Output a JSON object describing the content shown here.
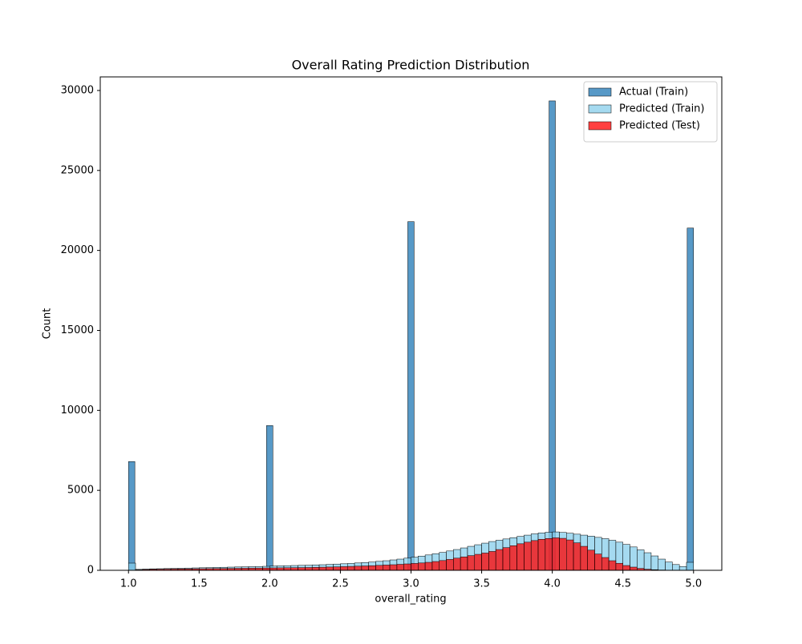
{
  "chart_data": {
    "type": "histogram",
    "title": "Overall Rating Prediction Distribution",
    "xlabel": "overall_rating",
    "ylabel": "Count",
    "xlim": [
      0.8,
      5.2
    ],
    "ylim": [
      0,
      30850
    ],
    "xticks": [
      {
        "value": 1.0,
        "label": "1.0"
      },
      {
        "value": 1.5,
        "label": "1.5"
      },
      {
        "value": 2.0,
        "label": "2.0"
      },
      {
        "value": 2.5,
        "label": "2.5"
      },
      {
        "value": 3.0,
        "label": "3.0"
      },
      {
        "value": 3.5,
        "label": "3.5"
      },
      {
        "value": 4.0,
        "label": "4.0"
      },
      {
        "value": 4.5,
        "label": "4.5"
      },
      {
        "value": 5.0,
        "label": "5.0"
      }
    ],
    "yticks": [
      0,
      5000,
      10000,
      15000,
      20000,
      25000,
      30000
    ],
    "grid": false,
    "legend": "upper right",
    "series": [
      {
        "name": "Actual (Train)",
        "color": "#1f77b4",
        "bins": [
          1.0,
          1.045,
          1.977,
          2.022,
          2.977,
          3.022,
          3.977,
          4.022,
          4.955,
          5.0
        ],
        "values": [
          6800,
          0,
          9050,
          0,
          21800,
          0,
          29350,
          0,
          21400
        ]
      },
      {
        "name": "Predicted (Train)",
        "color": "#87ceeb",
        "bins": [
          1.0,
          1.05,
          1.1,
          1.15,
          1.2,
          1.25,
          1.3,
          1.35,
          1.4,
          1.45,
          1.5,
          1.55,
          1.6,
          1.65,
          1.7,
          1.75,
          1.8,
          1.85,
          1.9,
          1.95,
          2.0,
          2.05,
          2.1,
          2.15,
          2.2,
          2.25,
          2.3,
          2.35,
          2.4,
          2.45,
          2.5,
          2.55,
          2.6,
          2.65,
          2.7,
          2.75,
          2.8,
          2.85,
          2.9,
          2.95,
          3.0,
          3.05,
          3.1,
          3.15,
          3.2,
          3.25,
          3.3,
          3.35,
          3.4,
          3.45,
          3.5,
          3.55,
          3.6,
          3.65,
          3.7,
          3.75,
          3.8,
          3.85,
          3.9,
          3.95,
          4.0,
          4.05,
          4.1,
          4.15,
          4.2,
          4.25,
          4.3,
          4.35,
          4.4,
          4.45,
          4.5,
          4.55,
          4.6,
          4.65,
          4.7,
          4.75,
          4.8,
          4.85,
          4.9,
          4.95,
          5.0
        ],
        "values": [
          450,
          60,
          80,
          90,
          100,
          110,
          120,
          130,
          140,
          150,
          160,
          170,
          180,
          190,
          200,
          210,
          220,
          230,
          240,
          250,
          270,
          280,
          290,
          300,
          310,
          320,
          340,
          350,
          370,
          390,
          410,
          430,
          460,
          490,
          520,
          560,
          600,
          650,
          700,
          760,
          820,
          890,
          960,
          1040,
          1120,
          1210,
          1300,
          1400,
          1500,
          1600,
          1700,
          1800,
          1880,
          1960,
          2040,
          2120,
          2200,
          2280,
          2340,
          2380,
          2400,
          2370,
          2320,
          2260,
          2200,
          2140,
          2060,
          1980,
          1880,
          1760,
          1620,
          1460,
          1280,
          1100,
          900,
          700,
          520,
          360,
          240,
          500
        ]
      },
      {
        "name": "Predicted (Test)",
        "color": "#ff0000",
        "bins": [
          1.0,
          1.05,
          1.1,
          1.15,
          1.2,
          1.25,
          1.3,
          1.35,
          1.4,
          1.45,
          1.5,
          1.55,
          1.6,
          1.65,
          1.7,
          1.75,
          1.8,
          1.85,
          1.9,
          1.95,
          2.0,
          2.05,
          2.1,
          2.15,
          2.2,
          2.25,
          2.3,
          2.35,
          2.4,
          2.45,
          2.5,
          2.55,
          2.6,
          2.65,
          2.7,
          2.75,
          2.8,
          2.85,
          2.9,
          2.95,
          3.0,
          3.05,
          3.1,
          3.15,
          3.2,
          3.25,
          3.3,
          3.35,
          3.4,
          3.45,
          3.5,
          3.55,
          3.6,
          3.65,
          3.7,
          3.75,
          3.8,
          3.85,
          3.9,
          3.95,
          4.0,
          4.05,
          4.1,
          4.15,
          4.2,
          4.25,
          4.3,
          4.35,
          4.4,
          4.45,
          4.5,
          4.55,
          4.6,
          4.65,
          4.7,
          4.75,
          4.8,
          4.85,
          4.9,
          4.95,
          5.0
        ],
        "values": [
          0,
          30,
          50,
          60,
          70,
          75,
          80,
          85,
          90,
          95,
          100,
          105,
          110,
          115,
          120,
          125,
          130,
          135,
          140,
          145,
          150,
          155,
          160,
          165,
          170,
          175,
          185,
          195,
          205,
          215,
          230,
          245,
          260,
          275,
          290,
          310,
          330,
          350,
          375,
          400,
          430,
          460,
          500,
          550,
          610,
          680,
          760,
          840,
          920,
          1000,
          1080,
          1180,
          1300,
          1420,
          1540,
          1660,
          1760,
          1860,
          1940,
          1990,
          2030,
          2000,
          1900,
          1720,
          1500,
          1260,
          1020,
          800,
          600,
          440,
          300,
          200,
          120,
          70,
          40,
          20,
          10,
          0,
          0,
          0
        ]
      }
    ]
  }
}
